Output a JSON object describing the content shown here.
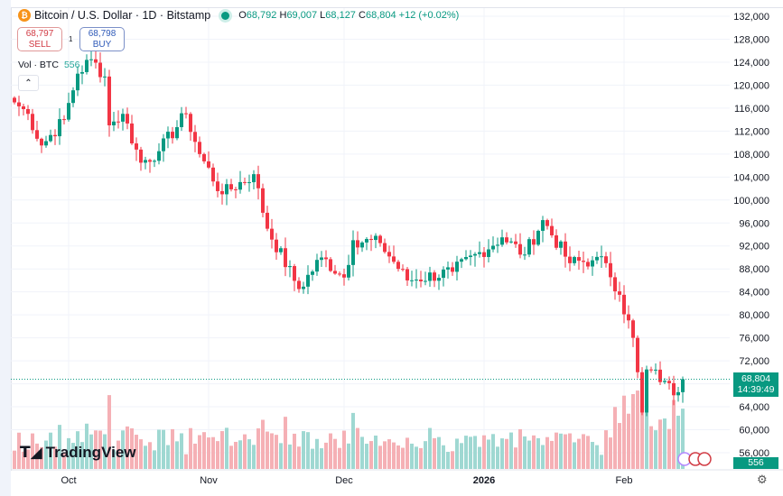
{
  "header": {
    "symbol": "Bitcoin / U.S. Dollar · 1D · Bitstamp",
    "open": "68,792",
    "high": "69,007",
    "low": "68,127",
    "close": "68,804",
    "change": "+12 (+0.02%)",
    "o": "O",
    "h": "H",
    "l": "L",
    "c": "C"
  },
  "trade": {
    "sell_price": "68,797",
    "sell_label": "SELL",
    "spread": "1",
    "buy_price": "68,798",
    "buy_label": "BUY"
  },
  "volume": {
    "label": "Vol · BTC",
    "value": "556"
  },
  "logo": "TradingView",
  "last_price": {
    "price": "68,804",
    "countdown": "14:39:49"
  },
  "colors": {
    "up": "#089981",
    "down": "#f23645",
    "vol_up": "#9fd8d2",
    "vol_down": "#f5b0b5"
  },
  "chart_data": {
    "type": "candlestick",
    "price_ticks": [
      132000,
      128000,
      124000,
      120000,
      116000,
      112000,
      108000,
      104000,
      100000,
      96000,
      92000,
      88000,
      84000,
      80000,
      76000,
      72000,
      68000,
      64000,
      60000,
      56000
    ],
    "time_ticks": [
      {
        "label": "Oct",
        "day": 12
      },
      {
        "label": "Nov",
        "day": 43
      },
      {
        "label": "Dec",
        "day": 73
      },
      {
        "label": "2026",
        "day": 104
      },
      {
        "label": "Feb",
        "day": 135
      }
    ],
    "ylim": [
      56000,
      132000
    ],
    "days": 149,
    "close_keypoints": [
      [
        0,
        117000
      ],
      [
        3,
        115000
      ],
      [
        6,
        109500
      ],
      [
        11,
        114000
      ],
      [
        14,
        122000
      ],
      [
        17,
        124500
      ],
      [
        20,
        121500
      ],
      [
        21,
        113000
      ],
      [
        24,
        115000
      ],
      [
        28,
        106500
      ],
      [
        32,
        108500
      ],
      [
        38,
        115000
      ],
      [
        41,
        108000
      ],
      [
        46,
        101000
      ],
      [
        53,
        104500
      ],
      [
        56,
        95000
      ],
      [
        63,
        84500
      ],
      [
        68,
        90000
      ],
      [
        73,
        86500
      ],
      [
        75,
        93000
      ],
      [
        81,
        92500
      ],
      [
        87,
        86000
      ],
      [
        97,
        87500
      ],
      [
        108,
        93500
      ],
      [
        113,
        90500
      ],
      [
        117,
        96500
      ],
      [
        123,
        89000
      ],
      [
        128,
        89500
      ],
      [
        131,
        89000
      ],
      [
        134,
        83500
      ],
      [
        137,
        76000
      ],
      [
        139,
        63000
      ],
      [
        140,
        70500
      ],
      [
        144,
        68500
      ],
      [
        146,
        66000
      ],
      [
        148,
        68804
      ]
    ]
  }
}
